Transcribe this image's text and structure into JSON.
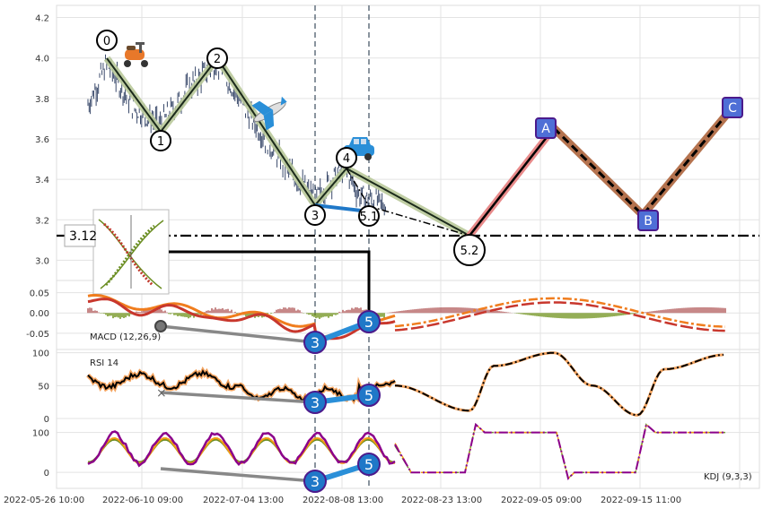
{
  "chart_data": {
    "type": "line",
    "x_ticks": [
      "2022-05-26 10:00",
      "2022-06-10 09:00",
      "2022-07-04 13:00",
      "2022-08-08 13:00",
      "2022-08-23 13:00",
      "2022-09-05 09:00",
      "2022-09-15 11:00"
    ],
    "price_panel": {
      "y_ticks": [
        "3.0",
        "3.2",
        "3.4",
        "3.6",
        "3.8",
        "4.0",
        "4.2"
      ],
      "ylim": [
        2.9,
        4.26
      ],
      "price_label": "3.12",
      "horizontal_line": 3.12,
      "wave_points": [
        {
          "label": "0",
          "x": 0.07,
          "y": 4.0
        },
        {
          "label": "1",
          "x": 0.19,
          "y": 3.67
        },
        {
          "label": "2",
          "x": 0.33,
          "y": 3.99
        },
        {
          "label": "3",
          "x": 0.5,
          "y": 3.28
        },
        {
          "label": "4",
          "x": 0.56,
          "y": 3.52
        },
        {
          "label": "5.1",
          "x": 0.59,
          "y": 3.25
        },
        {
          "label": "5.2",
          "x": 0.75,
          "y": 3.13
        }
      ],
      "abc_points": [
        {
          "label": "A",
          "x": 0.88,
          "y": 3.63
        },
        {
          "label": "B",
          "x": 1.03,
          "y": 3.22
        },
        {
          "label": "C",
          "x": 1.18,
          "y": 3.76
        }
      ]
    },
    "macd_panel": {
      "label": "MACD (12,26,9)",
      "y_ticks": [
        "-0.05",
        "0.00",
        "0.05"
      ],
      "ylim": [
        -0.09,
        0.08
      ]
    },
    "rsi_panel": {
      "label": "RSI 14",
      "y_ticks": [
        "0",
        "50",
        "100"
      ],
      "ylim": [
        0,
        105
      ]
    },
    "kdj_panel": {
      "label": "KDJ (9,3,3)",
      "y_ticks": [
        "0",
        "100"
      ],
      "ylim": [
        -40,
        135
      ]
    },
    "divergence_markers": [
      {
        "label": "3"
      },
      {
        "label": "5"
      }
    ]
  },
  "colors": {
    "candle": "#3a4a6b",
    "macd_orange": "#f07d1e",
    "macd_red": "#c8372d",
    "rsi_black": "#000000",
    "rsi_orange": "#f4a460",
    "kdj_purple": "#8b008b",
    "kdj_orange": "#f39c12",
    "kdj_green": "#6b8e23",
    "wave_green": "#b9c99a",
    "abc_pink": "#e88a8a",
    "abc_brown": "#b5734f",
    "marker_blue": "#1f78c8",
    "box_blue": "#4e6fd6",
    "box_border": "#4b1a8c"
  },
  "icons": [
    "scooter-icon",
    "airplane-icon",
    "car-icon",
    "inset-thumbnail"
  ]
}
